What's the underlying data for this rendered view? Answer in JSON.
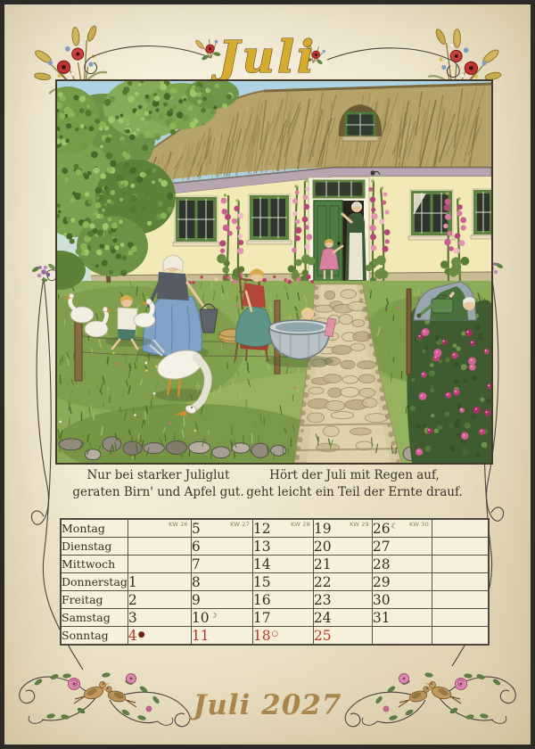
{
  "header": {
    "month_title": "Juli"
  },
  "footer": {
    "title": "Juli 2027"
  },
  "proverb": {
    "left": [
      "Nur bei starker Juliglut",
      "geraten Birn' und Apfel gut."
    ],
    "right": [
      "Hört der Juli mit Regen auf,",
      "geht leicht ein Teil der Ernte drauf."
    ]
  },
  "calendar": {
    "kw_labels": [
      "KW 26",
      "KW 27",
      "KW 28",
      "KW 29",
      "KW 30",
      ""
    ],
    "moon_symbols": {
      "new": "●",
      "first": "☽",
      "full": "○",
      "last": "☾"
    },
    "rows": [
      {
        "day": "Montag",
        "sunday": false,
        "cells": [
          {
            "n": ""
          },
          {
            "n": "5"
          },
          {
            "n": "12"
          },
          {
            "n": "19"
          },
          {
            "n": "26",
            "moon": "last"
          },
          {
            "n": ""
          }
        ]
      },
      {
        "day": "Dienstag",
        "sunday": false,
        "cells": [
          {
            "n": ""
          },
          {
            "n": "6"
          },
          {
            "n": "13"
          },
          {
            "n": "20"
          },
          {
            "n": "27"
          },
          {
            "n": ""
          }
        ]
      },
      {
        "day": "Mittwoch",
        "sunday": false,
        "cells": [
          {
            "n": ""
          },
          {
            "n": "7"
          },
          {
            "n": "14"
          },
          {
            "n": "21"
          },
          {
            "n": "28"
          },
          {
            "n": ""
          }
        ]
      },
      {
        "day": "Donnerstag",
        "sunday": false,
        "cells": [
          {
            "n": "1"
          },
          {
            "n": "8"
          },
          {
            "n": "15"
          },
          {
            "n": "22"
          },
          {
            "n": "29"
          },
          {
            "n": ""
          }
        ]
      },
      {
        "day": "Freitag",
        "sunday": false,
        "cells": [
          {
            "n": "2"
          },
          {
            "n": "9"
          },
          {
            "n": "16"
          },
          {
            "n": "23"
          },
          {
            "n": "30"
          },
          {
            "n": ""
          }
        ]
      },
      {
        "day": "Samstag",
        "sunday": false,
        "cells": [
          {
            "n": "3"
          },
          {
            "n": "10",
            "moon": "first"
          },
          {
            "n": "17"
          },
          {
            "n": "24"
          },
          {
            "n": "31"
          },
          {
            "n": ""
          }
        ]
      },
      {
        "day": "Sonntag",
        "sunday": true,
        "cells": [
          {
            "n": "4",
            "moon": "new"
          },
          {
            "n": "11"
          },
          {
            "n": "18",
            "moon": "full"
          },
          {
            "n": "25"
          },
          {
            "n": ""
          },
          {
            "n": ""
          }
        ]
      }
    ]
  },
  "colors": {
    "parchment": "#efe7cf",
    "outer_frame": "#2c2b27",
    "table_line": "#56514b",
    "sunday_red": "#b5392b",
    "title_gold": "#d6ab2e",
    "footer_gold": "#a8864e"
  }
}
